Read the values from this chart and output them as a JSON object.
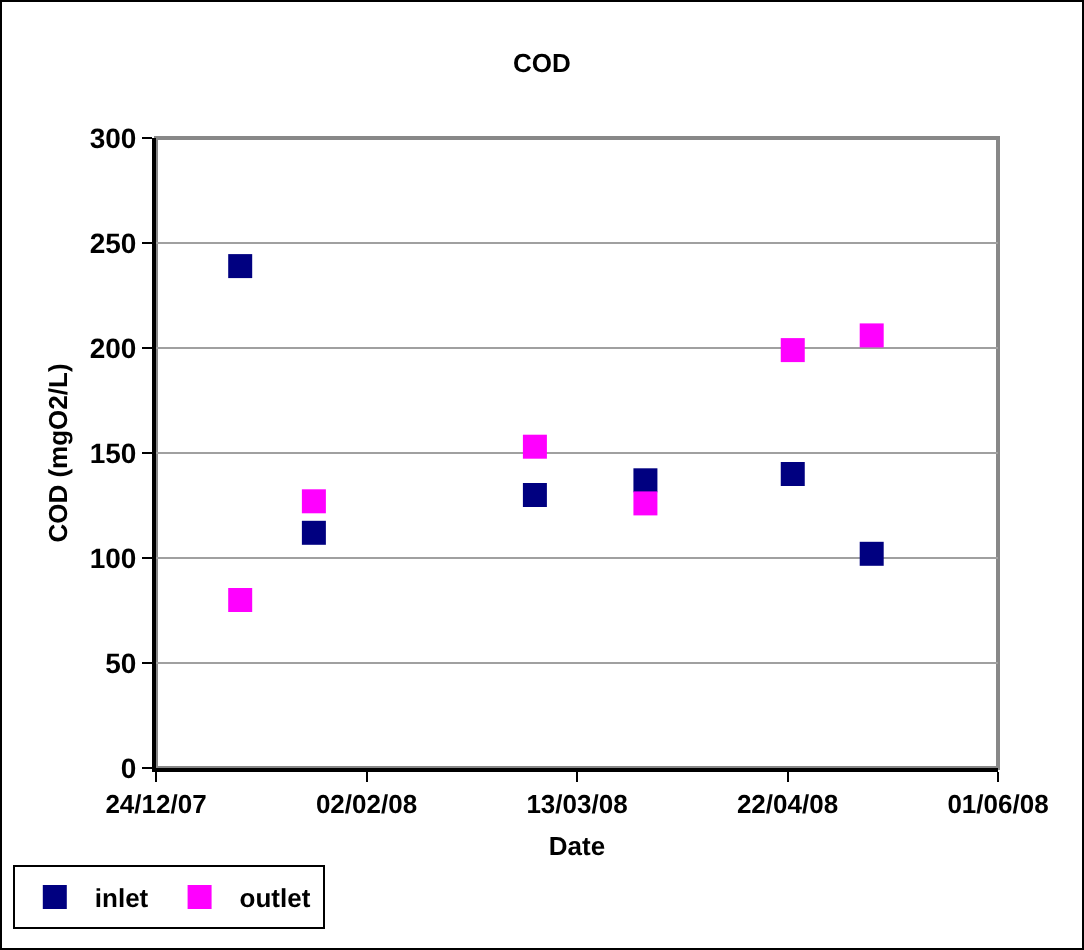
{
  "chart_data": {
    "type": "scatter",
    "title": "COD",
    "xlabel": "Date",
    "ylabel": "COD (mgO2/L)",
    "x": [
      "2008-01-09",
      "2008-01-23",
      "2008-03-05",
      "2008-03-26",
      "2008-04-23",
      "2008-05-08"
    ],
    "series": [
      {
        "name": "inlet",
        "color": "#000080",
        "values": [
          239,
          112,
          130,
          137,
          140,
          102
        ]
      },
      {
        "name": "outlet",
        "color": "#ff00ff",
        "values": [
          80,
          127,
          153,
          126,
          199,
          206
        ]
      }
    ],
    "xlim": [
      "2007-12-24",
      "2008-06-01"
    ],
    "xticks": [
      {
        "value": "2007-12-24",
        "label": "24/12/07"
      },
      {
        "value": "2008-02-02",
        "label": "02/02/08"
      },
      {
        "value": "2008-03-13",
        "label": "13/03/08"
      },
      {
        "value": "2008-04-22",
        "label": "22/04/08"
      },
      {
        "value": "2008-06-01",
        "label": "01/06/08"
      }
    ],
    "ylim": [
      0,
      300
    ],
    "yticks": [
      0,
      50,
      100,
      150,
      200,
      250,
      300
    ],
    "grid": "y",
    "legend": "bottom left",
    "marker": "square"
  }
}
